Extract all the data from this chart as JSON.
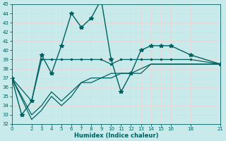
{
  "xlabel": "Humidex (Indice chaleur)",
  "ylabel": "",
  "background_color": "#c8eaea",
  "grid_color": "#e8d8d8",
  "line_color": "#006060",
  "xlim": [
    0,
    21
  ],
  "ylim": [
    32,
    45
  ],
  "xticks": [
    0,
    2,
    3,
    4,
    5,
    6,
    7,
    8,
    9,
    10,
    11,
    12,
    13,
    14,
    15,
    16,
    18,
    21
  ],
  "yticks": [
    32,
    33,
    34,
    35,
    36,
    37,
    38,
    39,
    40,
    41,
    42,
    43,
    44,
    45
  ],
  "series": [
    {
      "x": [
        0,
        1,
        2,
        3,
        4,
        5,
        6,
        7,
        8,
        9,
        10,
        11,
        12,
        13,
        14,
        15,
        16,
        18,
        21
      ],
      "y": [
        37,
        33,
        34.5,
        39.5,
        37.5,
        40.5,
        44,
        42.5,
        43.5,
        45.5,
        39,
        35.5,
        37.5,
        40,
        40.5,
        40.5,
        40.5,
        39.5,
        38.5
      ],
      "marker": "*",
      "markersize": 4,
      "linewidth": 1.0
    },
    {
      "x": [
        0,
        2,
        3,
        4,
        5,
        6,
        7,
        8,
        9,
        10,
        11,
        12,
        13,
        14,
        15,
        16,
        18,
        21
      ],
      "y": [
        37,
        34.5,
        39,
        39,
        39,
        39,
        39,
        39,
        39,
        38.5,
        39,
        39,
        39,
        39,
        39,
        39,
        39,
        38.5
      ],
      "marker": ".",
      "markersize": 3,
      "linewidth": 0.9
    },
    {
      "x": [
        0,
        2,
        3,
        4,
        5,
        6,
        7,
        8,
        9,
        10,
        11,
        12,
        13,
        14,
        15,
        16,
        18,
        21
      ],
      "y": [
        37,
        33,
        34,
        35.5,
        34.5,
        35.5,
        36.5,
        37,
        37,
        37.5,
        37.5,
        37.5,
        38,
        38.5,
        38.5,
        38.5,
        38.5,
        38.5
      ],
      "marker": null,
      "markersize": 0,
      "linewidth": 0.9
    },
    {
      "x": [
        0,
        2,
        3,
        4,
        5,
        6,
        7,
        8,
        9,
        10,
        11,
        12,
        13,
        14,
        15,
        16,
        18,
        21
      ],
      "y": [
        37,
        32.5,
        33.5,
        35,
        34,
        35,
        36.5,
        36.5,
        37,
        37,
        37.5,
        37.5,
        37.5,
        38.5,
        38.5,
        38.5,
        38.5,
        38.5
      ],
      "marker": null,
      "markersize": 0,
      "linewidth": 0.9
    }
  ]
}
